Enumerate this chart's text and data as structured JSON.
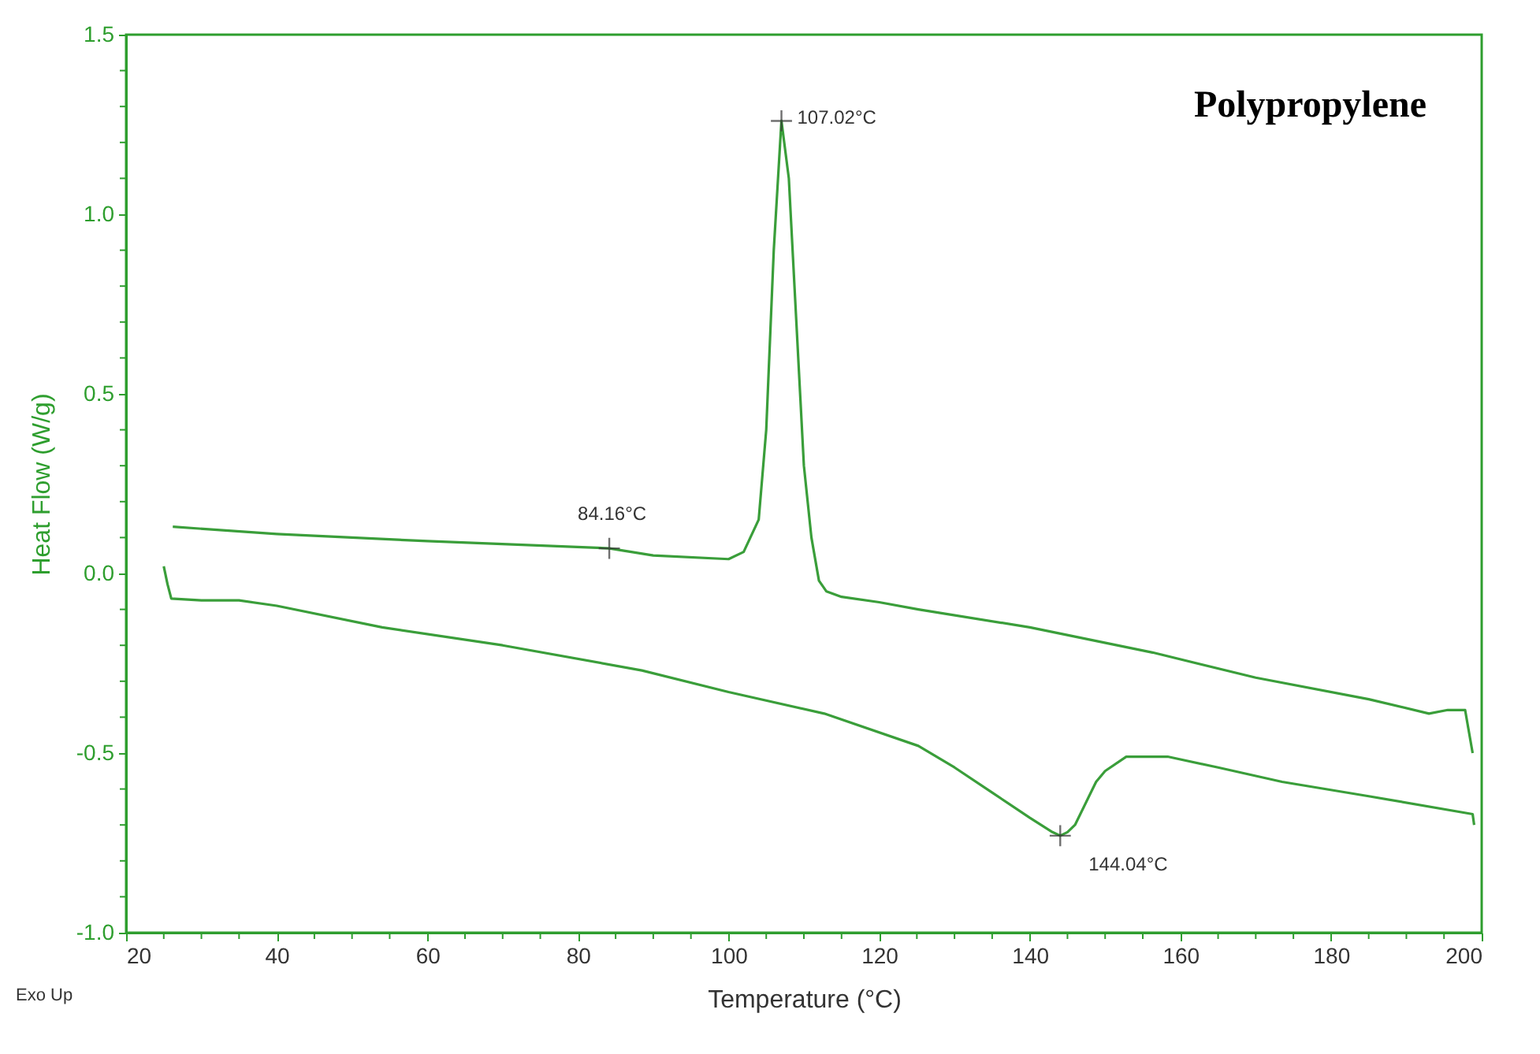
{
  "chart_data": {
    "type": "line",
    "title": "Polypropylene",
    "xlabel": "Temperature (°C)",
    "ylabel": "Heat Flow (W/g)",
    "xlim": [
      20,
      200
    ],
    "xticks": [
      20,
      {
        "value": 25,
        "label": null
      },
      {
        "value": 30,
        "label": null
      },
      {
        "value": 35,
        "label": null
      },
      40,
      {
        "value": 45,
        "label": null
      },
      {
        "value": 50,
        "label": null
      },
      {
        "value": 55,
        "label": null
      },
      60,
      {
        "value": 65,
        "label": null
      },
      {
        "value": 70,
        "label": null
      },
      {
        "value": 75,
        "label": null
      },
      80,
      {
        "value": 85,
        "label": null
      },
      {
        "value": 90,
        "label": null
      },
      {
        "value": 95,
        "label": null
      },
      100,
      {
        "value": 105,
        "label": null
      },
      {
        "value": 110,
        "label": null
      },
      {
        "value": 115,
        "label": null
      },
      120,
      {
        "value": 125,
        "label": null
      },
      {
        "value": 130,
        "label": null
      },
      {
        "value": 135,
        "label": null
      },
      140,
      {
        "value": 145,
        "label": null
      },
      {
        "value": 150,
        "label": null
      },
      {
        "value": 155,
        "label": null
      },
      160,
      {
        "value": 165,
        "label": null
      },
      {
        "value": 170,
        "label": null
      },
      {
        "value": 175,
        "label": null
      },
      180,
      {
        "value": 185,
        "label": null
      },
      {
        "value": 190,
        "label": null
      },
      {
        "value": 195,
        "label": null
      },
      200
    ],
    "ylim": [
      -1.0,
      1.5
    ],
    "yticks": [
      {
        "value": -1.0,
        "label": "-1.0"
      },
      {
        "value": -0.9,
        "label": null
      },
      {
        "value": -0.8,
        "label": null
      },
      {
        "value": -0.7,
        "label": null
      },
      {
        "value": -0.6,
        "label": null
      },
      {
        "value": -0.5,
        "label": "-0.5"
      },
      {
        "value": -0.4,
        "label": null
      },
      {
        "value": -0.3,
        "label": null
      },
      {
        "value": -0.2,
        "label": null
      },
      {
        "value": -0.1,
        "label": null
      },
      {
        "value": 0.0,
        "label": "0.0"
      },
      {
        "value": 0.1,
        "label": null
      },
      {
        "value": 0.2,
        "label": null
      },
      {
        "value": 0.3,
        "label": null
      },
      {
        "value": 0.4,
        "label": null
      },
      {
        "value": 0.5,
        "label": "0.5"
      },
      {
        "value": 0.6,
        "label": null
      },
      {
        "value": 0.7,
        "label": null
      },
      {
        "value": 0.8,
        "label": null
      },
      {
        "value": 0.9,
        "label": null
      },
      {
        "value": 1.0,
        "label": "1.0"
      },
      {
        "value": 1.1,
        "label": null
      },
      {
        "value": 1.2,
        "label": null
      },
      {
        "value": 1.3,
        "label": null
      },
      {
        "value": 1.4,
        "label": null
      },
      {
        "value": 1.5,
        "label": "1.5"
      }
    ],
    "grid": false,
    "marker": "none",
    "line_style": "solid",
    "series": [
      {
        "color": "#3a9e3a",
        "x": [
          26.2,
          40,
          60,
          84.16,
          90,
          100,
          102,
          104,
          105,
          106,
          107.02,
          108,
          109,
          110,
          111,
          112,
          113,
          115,
          120,
          125.2,
          140,
          156.3,
          170,
          185,
          193,
          195.5,
          197.8,
          198.8
        ],
        "values": [
          0.13,
          0.11,
          0.09,
          0.07,
          0.05,
          0.04,
          0.06,
          0.15,
          0.4,
          0.9,
          1.26,
          1.1,
          0.7,
          0.3,
          0.1,
          -0.02,
          -0.05,
          -0.065,
          -0.08,
          -0.1,
          -0.15,
          -0.22,
          -0.29,
          -0.35,
          -0.39,
          -0.38,
          -0.38,
          -0.5
        ]
      },
      {
        "color": "#3a9e3a",
        "x": [
          25,
          25.5,
          26,
          30,
          35,
          40,
          54,
          70,
          88.5,
          100,
          112.7,
          125.2,
          130,
          135,
          140,
          143,
          144.04,
          145,
          146,
          148.8,
          150,
          152.8,
          158.3,
          165,
          173.5,
          185,
          198.8,
          199
        ],
        "values": [
          0.02,
          -0.03,
          -0.07,
          -0.075,
          -0.075,
          -0.09,
          -0.15,
          -0.2,
          -0.27,
          -0.33,
          -0.39,
          -0.48,
          -0.54,
          -0.61,
          -0.68,
          -0.72,
          -0.73,
          -0.72,
          -0.7,
          -0.58,
          -0.55,
          -0.51,
          -0.51,
          -0.54,
          -0.58,
          -0.62,
          -0.67,
          -0.7
        ]
      }
    ],
    "annotations": [
      {
        "text": "84.16°C",
        "x": 84.16,
        "y": 0.07
      },
      {
        "text": "107.02°C",
        "x": 107.02,
        "y": 1.26
      },
      {
        "text": "144.04°C",
        "x": 144.04,
        "y": -0.73
      },
      "Exo Up"
    ]
  }
}
